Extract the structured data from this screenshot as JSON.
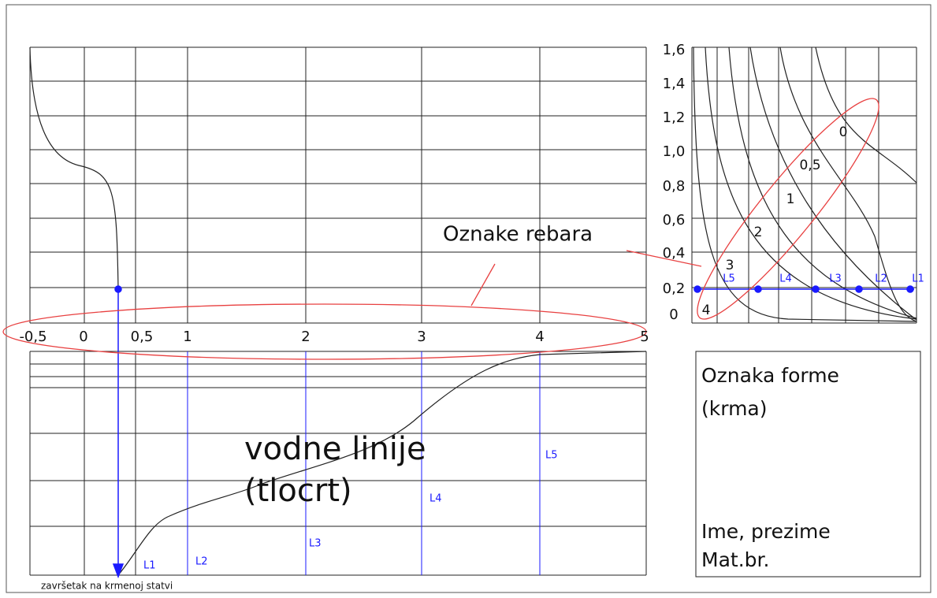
{
  "x_axis_labels": [
    "-0,5",
    "0",
    "0,5",
    "1",
    "2",
    "3",
    "4",
    "5"
  ],
  "y_axis_labels": [
    "1,6",
    "1,4",
    "1,2",
    "1,0",
    "0,8",
    "0,6",
    "0,4",
    "0,2",
    "0"
  ],
  "rib_labels": [
    "0",
    "0,5",
    "1",
    "2",
    "3",
    "4"
  ],
  "waterline_labels_right": [
    "L5",
    "L4",
    "L3",
    "L2",
    "L1"
  ],
  "waterline_labels_bottom": [
    "L1",
    "L2",
    "L3",
    "L4",
    "L5"
  ],
  "callout": "Oznake rebara",
  "plan_title": [
    "vodne linije",
    "(tlocrt)"
  ],
  "title_block": {
    "form": [
      "Oznaka forme",
      "(krma)"
    ],
    "student": [
      "Ime, prezime",
      "Mat.br."
    ]
  },
  "footnote": "završetak na krmenoj statvi"
}
